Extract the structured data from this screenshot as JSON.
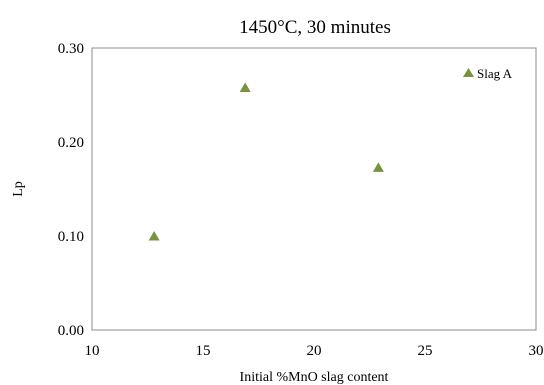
{
  "chart_data": {
    "type": "scatter",
    "title": "1450°C, 30 minutes",
    "xlabel": "Initial %MnO slag content",
    "ylabel": "Lp",
    "xlim": [
      10,
      30
    ],
    "ylim": [
      0,
      0.3
    ],
    "x_ticks": [
      "10",
      "15",
      "20",
      "25",
      "30"
    ],
    "y_ticks": [
      "0.00",
      "0.10",
      "0.20",
      "0.30"
    ],
    "grid": false,
    "legend_position": "top-right",
    "series": [
      {
        "name": "Slag A",
        "marker": "triangle",
        "color": "#77933c",
        "points": [
          {
            "x": 12.8,
            "y": 0.1
          },
          {
            "x": 16.9,
            "y": 0.258
          },
          {
            "x": 22.9,
            "y": 0.173
          }
        ]
      }
    ]
  }
}
